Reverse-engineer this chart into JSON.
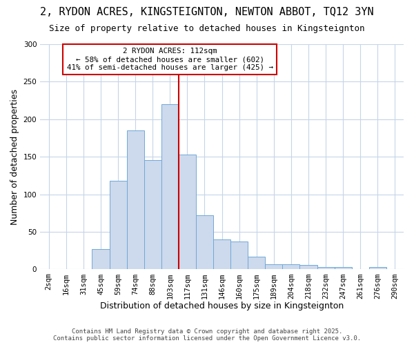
{
  "title_line1": "2, RYDON ACRES, KINGSTEIGNTON, NEWTON ABBOT, TQ12 3YN",
  "title_line2": "Size of property relative to detached houses in Kingsteignton",
  "xlabel": "Distribution of detached houses by size in Kingsteignton",
  "ylabel": "Number of detached properties",
  "footer": "Contains HM Land Registry data © Crown copyright and database right 2025.\nContains public sector information licensed under the Open Government Licence v3.0.",
  "bin_labels": [
    "2sqm",
    "16sqm",
    "31sqm",
    "45sqm",
    "59sqm",
    "74sqm",
    "88sqm",
    "103sqm",
    "117sqm",
    "131sqm",
    "146sqm",
    "160sqm",
    "175sqm",
    "189sqm",
    "204sqm",
    "218sqm",
    "232sqm",
    "247sqm",
    "261sqm",
    "276sqm",
    "290sqm"
  ],
  "bar_values": [
    0,
    0,
    0,
    27,
    118,
    185,
    146,
    220,
    153,
    72,
    40,
    37,
    17,
    7,
    7,
    6,
    3,
    3,
    0,
    3,
    0
  ],
  "bar_color": "#cdd9ec",
  "bar_edge_color": "#6fa8d8",
  "vline_color": "#cc0000",
  "vline_x": 7.5,
  "annotation_title": "2 RYDON ACRES: 112sqm",
  "annotation_line1": "← 58% of detached houses are smaller (602)",
  "annotation_line2": "41% of semi-detached houses are larger (425) →",
  "annotation_box_color": "#cc0000",
  "ylim": [
    0,
    300
  ],
  "yticks": [
    0,
    50,
    100,
    150,
    200,
    250,
    300
  ],
  "fig_bg_color": "#ffffff",
  "plot_bg_color": "#ffffff",
  "grid_color": "#c5d5e8",
  "title_fontsize": 11,
  "subtitle_fontsize": 9,
  "axis_label_fontsize": 9,
  "tick_fontsize": 7.5
}
